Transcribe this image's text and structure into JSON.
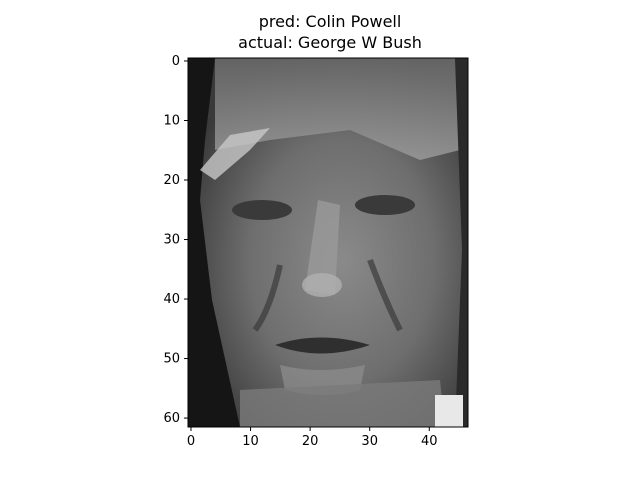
{
  "chart_data": {
    "type": "heatmap",
    "title_lines": [
      "pred: Colin Powell",
      "actual: George W Bush"
    ],
    "colormap": "gray",
    "image_size": {
      "cols": 47,
      "rows": 62
    },
    "xlim": [
      -0.5,
      46.5
    ],
    "ylim": [
      61.5,
      -0.5
    ],
    "x_ticks": [
      0,
      10,
      20,
      30,
      40
    ],
    "y_ticks": [
      0,
      10,
      20,
      30,
      40,
      50,
      60
    ],
    "xlabel": "",
    "ylabel": "",
    "grid": false,
    "values": "grayscale face image (pixel intensities not recoverable)"
  }
}
